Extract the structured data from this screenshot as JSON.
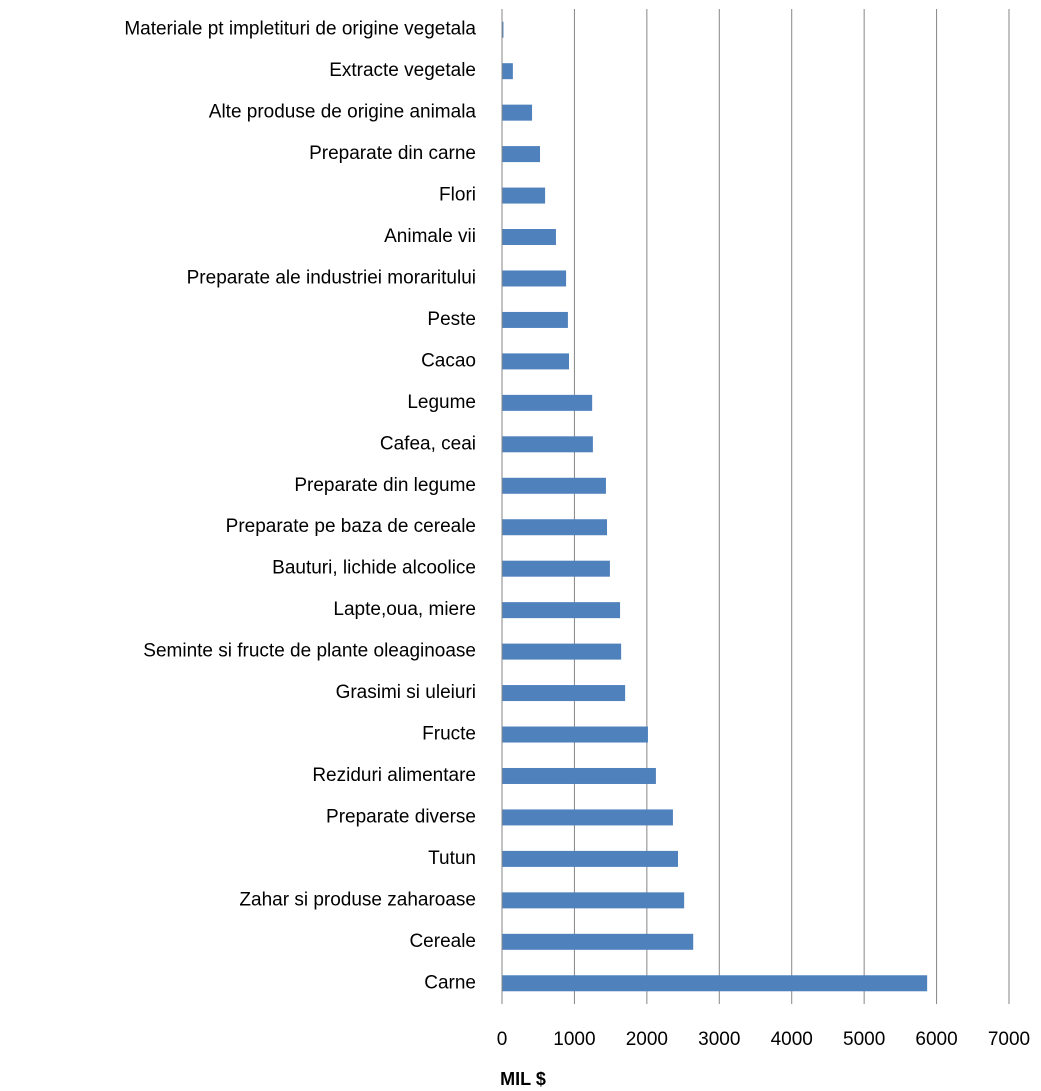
{
  "chart_data": {
    "type": "bar",
    "orientation": "horizontal",
    "categories": [
      "Materiale pt impletituri de origine vegetala",
      "Extracte vegetale",
      "Alte produse de origine animala",
      "Preparate din carne",
      "Flori",
      "Animale vii",
      "Preparate ale industriei moraritului",
      "Peste",
      "Cacao",
      "Legume",
      "Cafea, ceai",
      "Preparate din legume",
      "Preparate pe baza de cereale",
      "Bauturi, lichide alcoolice",
      "Lapte,oua, miere",
      "Seminte si fructe de plante oleaginoase",
      "Grasimi si uleiuri",
      "Fructe",
      "Reziduri alimentare",
      "Preparate diverse",
      "Tutun",
      "Zahar si produse zaharoase",
      "Cereale",
      "Carne"
    ],
    "values": [
      20,
      150,
      415,
      525,
      595,
      745,
      885,
      910,
      925,
      1245,
      1255,
      1435,
      1450,
      1490,
      1630,
      1645,
      1700,
      2015,
      2125,
      2360,
      2430,
      2515,
      2640,
      5870
    ],
    "color": "#4f81bd",
    "x_label": "MIL $",
    "xlim": [
      0,
      7000
    ],
    "xticks": [
      0,
      1000,
      2000,
      3000,
      4000,
      5000,
      6000,
      7000
    ],
    "grid": true
  }
}
